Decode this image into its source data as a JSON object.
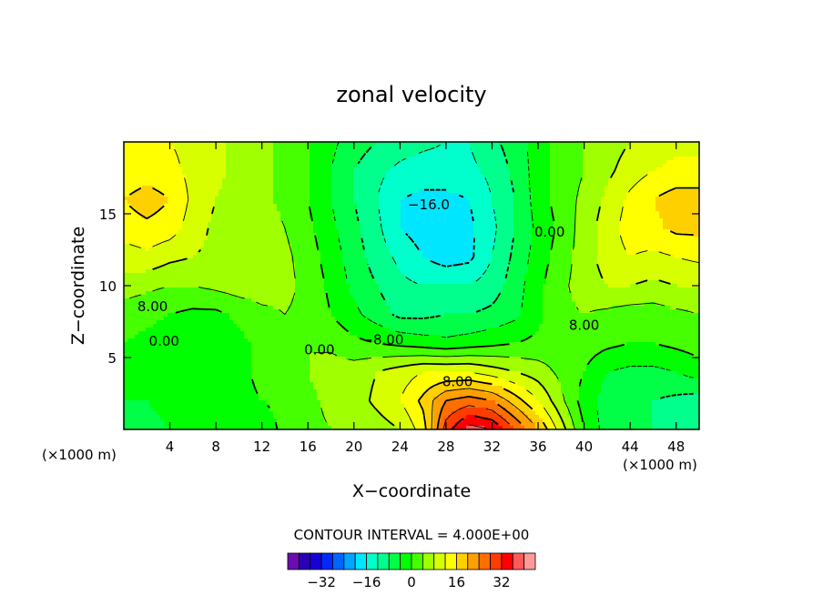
{
  "chart_data": {
    "type": "heatmap",
    "title": "zonal velocity",
    "xlabel": "X−coordinate",
    "ylabel": "Z−coordinate",
    "x_unit": "(×1000 m)",
    "x_unit_right": "(×1000 m)",
    "xlim": [
      0,
      50
    ],
    "ylim": [
      0,
      20
    ],
    "x_ticks": [
      4,
      8,
      12,
      16,
      20,
      24,
      28,
      32,
      36,
      40,
      44,
      48
    ],
    "x_ticklabels": [
      "4",
      "8",
      "12",
      "16",
      "20",
      "24",
      "28",
      "32",
      "36",
      "40",
      "44",
      "48"
    ],
    "y_ticks": [
      5,
      10,
      15
    ],
    "y_ticklabels": [
      "5",
      "10",
      "15"
    ],
    "contour_interval_text": "CONTOUR INTERVAL =  4.000E+00",
    "contour_labels": [
      {
        "text": "−16.0",
        "x": 26.5,
        "y": 15.7
      },
      {
        "text": "8.00",
        "x": 2.5,
        "y": 8.6
      },
      {
        "text": "0.00",
        "x": 3.5,
        "y": 6.2
      },
      {
        "text": "0.00",
        "x": 17.0,
        "y": 5.6
      },
      {
        "text": "−8.00",
        "x": 22.5,
        "y": 6.3
      },
      {
        "text": "8.00",
        "x": 29.0,
        "y": 3.4
      },
      {
        "text": "0.00",
        "x": 37.0,
        "y": 13.8
      },
      {
        "text": "8.00",
        "x": 40.0,
        "y": 7.3
      }
    ],
    "colorbar": {
      "colors": [
        "#6a0dad",
        "#2800b4",
        "#1800d8",
        "#0028ff",
        "#0064ff",
        "#00a6ff",
        "#00e6ff",
        "#00ffcc",
        "#00ff8c",
        "#00ff46",
        "#00ff00",
        "#46ff00",
        "#a0ff00",
        "#d8ff00",
        "#ffff00",
        "#ffd000",
        "#ffa000",
        "#ff6e00",
        "#ff3c00",
        "#ff0000",
        "#ff5a5a",
        "#ff9a9a"
      ],
      "tick_values": [
        -32,
        -16,
        0,
        16,
        32
      ],
      "tick_labels": [
        "−32",
        "−16",
        "0",
        "16",
        "32"
      ],
      "min": -44,
      "max": 44
    },
    "field": {
      "x_count": 26,
      "z_count": 11,
      "x_start": 0,
      "x_step": 2,
      "z_start": 0,
      "z_step": 2,
      "values": [
        [
          -6,
          -5,
          -4,
          -3,
          -2,
          -3,
          -4,
          2,
          3,
          4,
          5,
          6,
          8,
          14,
          30,
          38,
          36,
          28,
          20,
          10,
          0,
          -6,
          -8,
          -8,
          -10,
          -12
        ],
        [
          -4,
          -4,
          -3,
          -3,
          -2,
          -2,
          0,
          2,
          3,
          5,
          6,
          9,
          12,
          17,
          24,
          26,
          24,
          18,
          12,
          5,
          -2,
          -6,
          -8,
          -8,
          -9,
          -10
        ],
        [
          -2,
          -2,
          -3,
          -4,
          -4,
          -2,
          2,
          3,
          4,
          6,
          6,
          8,
          10,
          12,
          12,
          12,
          10,
          8,
          6,
          3,
          0,
          -4,
          -5,
          -5,
          -4,
          -2
        ],
        [
          0,
          -1,
          -2,
          -3,
          -3,
          -1,
          1,
          3,
          4,
          3,
          1,
          0,
          -1,
          -2,
          -3,
          -2,
          -1,
          0,
          1,
          2,
          2,
          1,
          0,
          0,
          1,
          2
        ],
        [
          2,
          1,
          0,
          -1,
          -1,
          1,
          3,
          4,
          3,
          0,
          -3,
          -6,
          -9,
          -9,
          -8,
          -8,
          -7,
          -5,
          -1,
          3,
          4,
          3,
          2,
          2,
          3,
          4
        ],
        [
          6,
          5,
          4,
          4,
          5,
          6,
          6,
          5,
          3,
          -1,
          -5,
          -8,
          -11,
          -12,
          -12,
          -12,
          -10,
          -6,
          -1,
          3,
          6,
          8,
          8,
          7,
          8,
          8
        ],
        [
          10,
          11,
          9,
          8,
          7,
          6,
          6,
          5,
          2,
          -2,
          -6,
          -10,
          -13,
          -16,
          -18,
          -17,
          -12,
          -7,
          -2,
          2,
          6,
          10,
          12,
          11,
          12,
          13
        ],
        [
          14,
          15,
          14,
          10,
          7,
          6,
          6,
          4,
          1,
          -3,
          -7,
          -11,
          -16,
          -18,
          -19,
          -17,
          -13,
          -8,
          -3,
          1,
          6,
          10,
          14,
          15,
          17,
          17
        ],
        [
          16,
          18,
          16,
          11,
          8,
          6,
          5,
          3,
          0,
          -4,
          -8,
          -12,
          -16,
          -17,
          -17,
          -16,
          -12,
          -8,
          -2,
          2,
          5,
          9,
          13,
          16,
          18,
          18
        ],
        [
          13,
          14,
          13,
          11,
          9,
          7,
          5,
          3,
          0,
          -4,
          -8,
          -11,
          -13,
          -14,
          -14,
          -13,
          -11,
          -7,
          -2,
          2,
          4,
          7,
          10,
          12,
          13,
          13
        ],
        [
          12,
          12,
          12,
          11,
          9,
          7,
          5,
          3,
          0,
          -3,
          -6,
          -8,
          -10,
          -11,
          -12,
          -12,
          -9,
          -6,
          -2,
          2,
          4,
          6,
          8,
          10,
          11,
          11
        ]
      ]
    }
  }
}
